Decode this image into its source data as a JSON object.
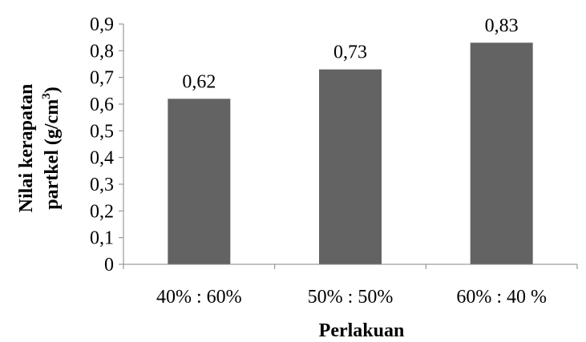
{
  "chart_data": {
    "type": "bar",
    "categories": [
      "40% : 60%",
      "50% : 50%",
      "60% : 40 %"
    ],
    "values": [
      0.62,
      0.73,
      0.83
    ],
    "data_labels": [
      "0,62",
      "0,73",
      "0,83"
    ],
    "title": "",
    "xlabel": "Perlakuan",
    "ylabel_line1": "Nilai kerapatan",
    "ylabel_line2_main": "partkel (g/cm",
    "ylabel_line2_sup": "3",
    "ylabel_line2_end": ")",
    "ylim": [
      0,
      0.9
    ],
    "yticks": [
      0,
      0.1,
      0.2,
      0.3,
      0.4,
      0.5,
      0.6,
      0.7,
      0.8,
      0.9
    ],
    "ytick_labels": [
      "0",
      "0,1",
      "0,2",
      "0,3",
      "0,4",
      "0,5",
      "0,6",
      "0,7",
      "0,8",
      "0,9"
    ],
    "bar_color": "#636363",
    "axis_color": "#868686",
    "grid": false,
    "legend": "none"
  }
}
